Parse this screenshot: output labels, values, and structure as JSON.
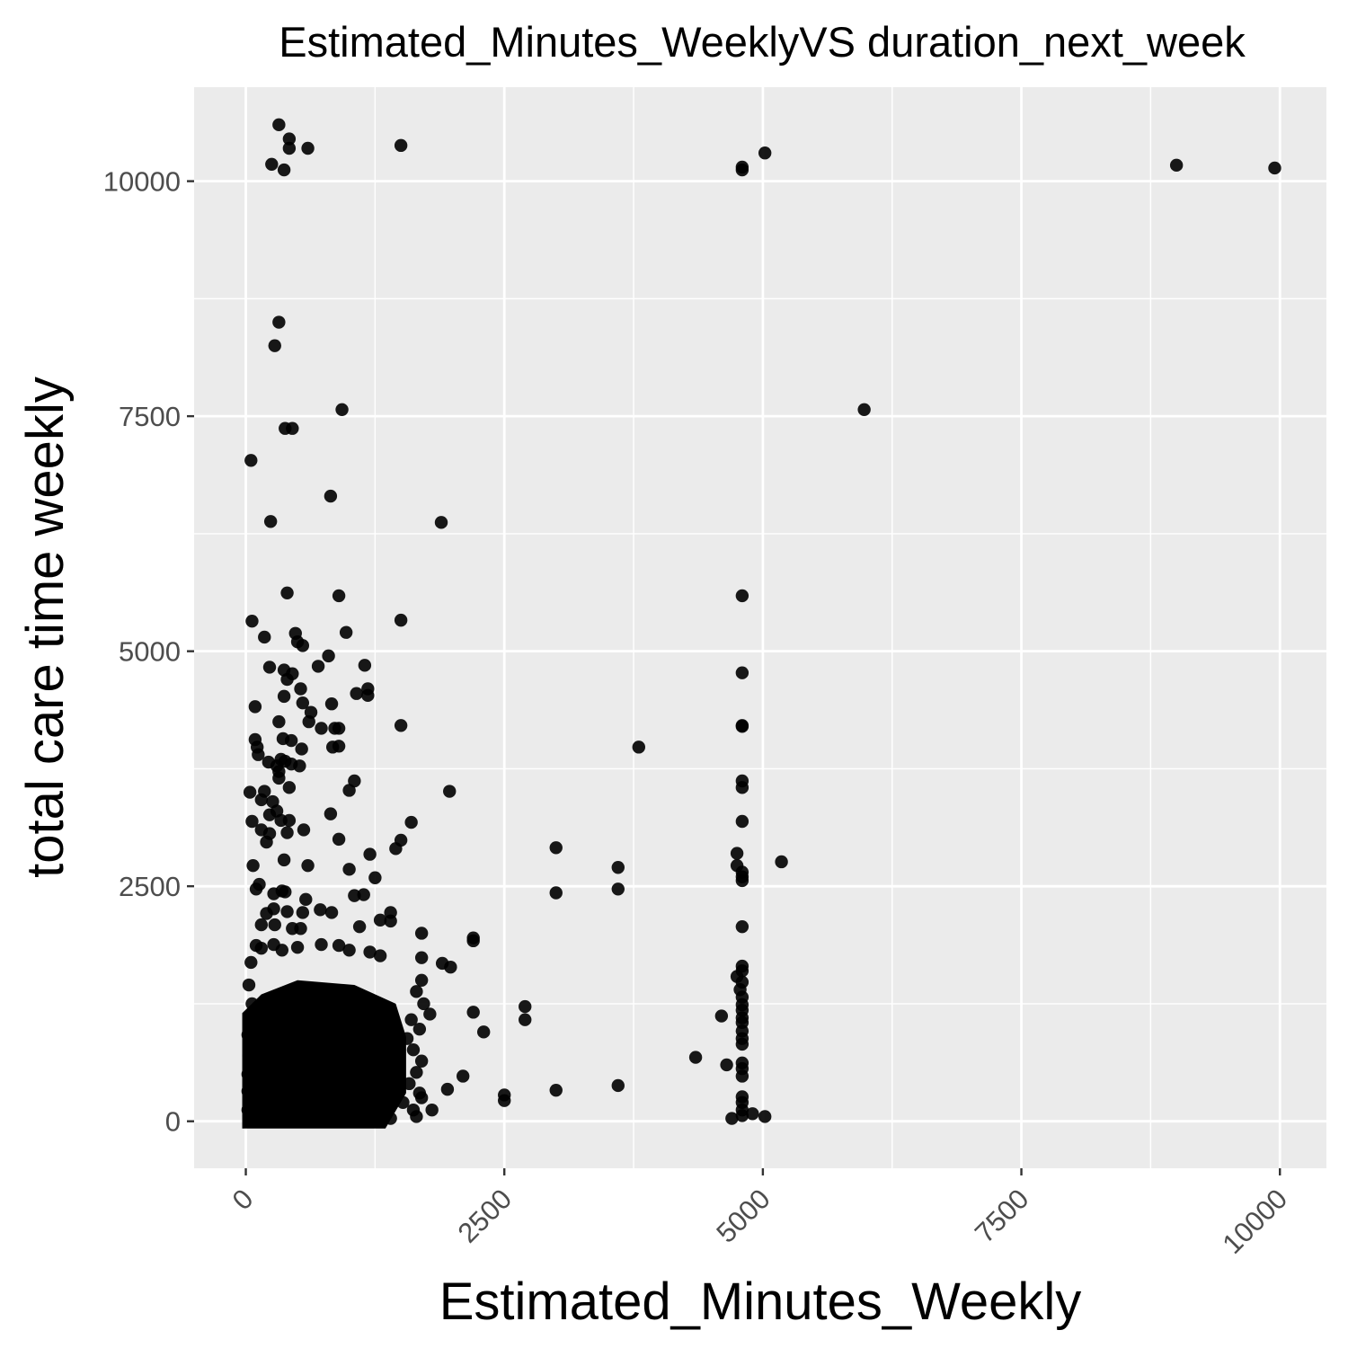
{
  "chart_data": {
    "type": "scatter",
    "title": "Estimated_Minutes_WeeklyVS duration_next_week",
    "xlabel": "Estimated_Minutes_Weekly",
    "ylabel": "total care time weekly",
    "xlim": [
      -500,
      10450
    ],
    "ylim": [
      -500,
      11000
    ],
    "xticks": [
      0,
      2500,
      5000,
      7500,
      10000
    ],
    "yticks": [
      0,
      2500,
      5000,
      7500,
      10000
    ],
    "xtick_labels": [
      "0",
      "2500",
      "5000",
      "7500",
      "10000"
    ],
    "ytick_labels": [
      "0",
      "2500",
      "5000",
      "7500",
      "10000"
    ],
    "x_label_rotation": -45,
    "grid": true,
    "panel_color": "#ebebeb",
    "grid_color": "#ffffff",
    "point_color": "#000000",
    "points": [
      [
        320,
        10600
      ],
      [
        420,
        10450
      ],
      [
        420,
        10350
      ],
      [
        600,
        10350
      ],
      [
        250,
        10180
      ],
      [
        370,
        10120
      ],
      [
        1500,
        10380
      ],
      [
        4800,
        10120
      ],
      [
        4800,
        10150
      ],
      [
        5020,
        10300
      ],
      [
        9000,
        10170
      ],
      [
        9950,
        10140
      ],
      [
        320,
        8500
      ],
      [
        280,
        8250
      ],
      [
        930,
        7570
      ],
      [
        380,
        7370
      ],
      [
        450,
        7370
      ],
      [
        5980,
        7570
      ],
      [
        50,
        7030
      ],
      [
        820,
        6650
      ],
      [
        240,
        6380
      ],
      [
        1890,
        6370
      ],
      [
        400,
        5620
      ],
      [
        900,
        5590
      ],
      [
        4800,
        5590
      ],
      [
        60,
        5320
      ],
      [
        1500,
        5330
      ],
      [
        180,
        5150
      ],
      [
        480,
        5190
      ],
      [
        500,
        5100
      ],
      [
        970,
        5200
      ],
      [
        550,
        5060
      ],
      [
        230,
        4830
      ],
      [
        370,
        4800
      ],
      [
        450,
        4760
      ],
      [
        700,
        4840
      ],
      [
        800,
        4950
      ],
      [
        400,
        4700
      ],
      [
        530,
        4600
      ],
      [
        1150,
        4850
      ],
      [
        4800,
        4770
      ],
      [
        370,
        4520
      ],
      [
        550,
        4450
      ],
      [
        630,
        4350
      ],
      [
        830,
        4440
      ],
      [
        1070,
        4550
      ],
      [
        1180,
        4600
      ],
      [
        1180,
        4530
      ],
      [
        90,
        4410
      ],
      [
        320,
        4250
      ],
      [
        610,
        4250
      ],
      [
        730,
        4180
      ],
      [
        860,
        4180
      ],
      [
        900,
        4180
      ],
      [
        1500,
        4210
      ],
      [
        4800,
        4210
      ],
      [
        4800,
        4200
      ],
      [
        360,
        4070
      ],
      [
        440,
        4050
      ],
      [
        540,
        3960
      ],
      [
        840,
        3980
      ],
      [
        900,
        3990
      ],
      [
        90,
        4060
      ],
      [
        110,
        3980
      ],
      [
        3800,
        3980
      ],
      [
        120,
        3900
      ],
      [
        220,
        3820
      ],
      [
        300,
        3780
      ],
      [
        320,
        3720
      ],
      [
        340,
        3850
      ],
      [
        380,
        3830
      ],
      [
        440,
        3800
      ],
      [
        520,
        3780
      ],
      [
        320,
        3650
      ],
      [
        420,
        3550
      ],
      [
        1050,
        3620
      ],
      [
        1000,
        3520
      ],
      [
        1970,
        3510
      ],
      [
        4800,
        3620
      ],
      [
        4800,
        3550
      ],
      [
        40,
        3500
      ],
      [
        180,
        3510
      ],
      [
        260,
        3400
      ],
      [
        300,
        3300
      ],
      [
        340,
        3200
      ],
      [
        420,
        3200
      ],
      [
        150,
        3420
      ],
      [
        230,
        3260
      ],
      [
        820,
        3270
      ],
      [
        60,
        3190
      ],
      [
        1600,
        3180
      ],
      [
        4800,
        3190
      ],
      [
        150,
        3100
      ],
      [
        230,
        3060
      ],
      [
        400,
        3070
      ],
      [
        560,
        3100
      ],
      [
        900,
        3000
      ],
      [
        200,
        2970
      ],
      [
        1450,
        2900
      ],
      [
        1500,
        2990
      ],
      [
        3000,
        2910
      ],
      [
        1200,
        2840
      ],
      [
        4750,
        2850
      ],
      [
        5180,
        2760
      ],
      [
        370,
        2780
      ],
      [
        70,
        2720
      ],
      [
        600,
        2720
      ],
      [
        1000,
        2680
      ],
      [
        3600,
        2700
      ],
      [
        4750,
        2720
      ],
      [
        4800,
        2650
      ],
      [
        4800,
        2560
      ],
      [
        1250,
        2590
      ],
      [
        130,
        2520
      ],
      [
        270,
        2420
      ],
      [
        350,
        2450
      ],
      [
        380,
        2440
      ],
      [
        1050,
        2400
      ],
      [
        1140,
        2410
      ],
      [
        580,
        2360
      ],
      [
        100,
        2470
      ],
      [
        3000,
        2430
      ],
      [
        3600,
        2470
      ],
      [
        4800,
        2600
      ],
      [
        200,
        2210
      ],
      [
        270,
        2260
      ],
      [
        400,
        2230
      ],
      [
        550,
        2220
      ],
      [
        720,
        2250
      ],
      [
        830,
        2220
      ],
      [
        1300,
        2140
      ],
      [
        1400,
        2220
      ],
      [
        150,
        2090
      ],
      [
        280,
        2090
      ],
      [
        450,
        2050
      ],
      [
        530,
        2050
      ],
      [
        1100,
        2070
      ],
      [
        1400,
        2130
      ],
      [
        1700,
        2000
      ],
      [
        2200,
        1950
      ],
      [
        2200,
        1920
      ],
      [
        4800,
        2070
      ],
      [
        100,
        1870
      ],
      [
        150,
        1840
      ],
      [
        270,
        1880
      ],
      [
        350,
        1820
      ],
      [
        500,
        1850
      ],
      [
        730,
        1880
      ],
      [
        900,
        1870
      ],
      [
        1000,
        1820
      ],
      [
        1200,
        1800
      ],
      [
        1300,
        1760
      ],
      [
        1700,
        1740
      ],
      [
        1900,
        1680
      ],
      [
        1980,
        1640
      ],
      [
        4800,
        1650
      ],
      [
        4800,
        1600
      ],
      [
        4750,
        1540
      ],
      [
        4800,
        1480
      ],
      [
        4780,
        1400
      ],
      [
        4800,
        1320
      ],
      [
        4800,
        1240
      ],
      [
        4800,
        1180
      ],
      [
        4800,
        1100
      ],
      [
        4800,
        1050
      ],
      [
        4800,
        960
      ],
      [
        4800,
        880
      ],
      [
        4800,
        820
      ],
      [
        4800,
        620
      ],
      [
        4800,
        560
      ],
      [
        4800,
        480
      ],
      [
        4800,
        260
      ],
      [
        4800,
        200
      ],
      [
        4800,
        120
      ],
      [
        4800,
        60
      ],
      [
        4700,
        30
      ],
      [
        4900,
        80
      ],
      [
        2700,
        1220
      ],
      [
        2700,
        1080
      ],
      [
        2200,
        1160
      ],
      [
        2300,
        950
      ],
      [
        4600,
        1120
      ],
      [
        4350,
        680
      ],
      [
        4650,
        600
      ],
      [
        3600,
        380
      ],
      [
        3000,
        330
      ],
      [
        2500,
        280
      ],
      [
        2500,
        220
      ],
      [
        2100,
        480
      ],
      [
        1950,
        340
      ],
      [
        1800,
        120
      ],
      [
        1700,
        250
      ],
      [
        1650,
        50
      ],
      [
        1400,
        30
      ],
      [
        5020,
        50
      ],
      [
        1700,
        1500
      ],
      [
        1650,
        1380
      ],
      [
        1720,
        1250
      ],
      [
        1780,
        1140
      ],
      [
        1600,
        1080
      ],
      [
        1680,
        980
      ],
      [
        1560,
        880
      ],
      [
        1620,
        760
      ],
      [
        1700,
        640
      ],
      [
        1650,
        520
      ],
      [
        1580,
        400
      ],
      [
        1680,
        300
      ],
      [
        1520,
        200
      ],
      [
        1620,
        120
      ],
      [
        50,
        1690
      ],
      [
        30,
        1450
      ],
      [
        20,
        920
      ],
      [
        30,
        700
      ],
      [
        20,
        500
      ],
      [
        20,
        320
      ],
      [
        20,
        120
      ],
      [
        30,
        60
      ],
      [
        40,
        240
      ],
      [
        60,
        1250
      ],
      [
        90,
        1100
      ],
      [
        100,
        820
      ],
      [
        110,
        460
      ]
    ],
    "dense_region": {
      "x": [
        0,
        1550
      ],
      "y": [
        0,
        1500
      ]
    }
  }
}
